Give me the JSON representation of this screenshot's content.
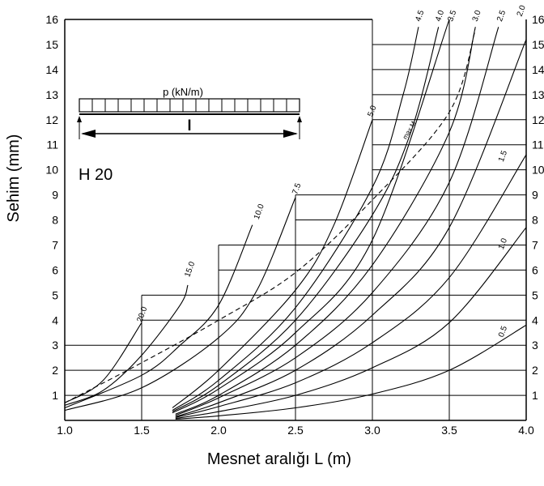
{
  "chart_data": {
    "type": "line",
    "title": "",
    "xlabel": "Mesnet aralığı L (m)",
    "ylabel": "Sehim (mm)",
    "xlim": [
      1.0,
      4.0
    ],
    "ylim": [
      0,
      16
    ],
    "x_ticks": [
      "1.0",
      "1.5",
      "2.0",
      "2.5",
      "3.0",
      "3.5",
      "4.0"
    ],
    "y_ticks": [
      "1",
      "2",
      "3",
      "4",
      "5",
      "6",
      "7",
      "8",
      "9",
      "10",
      "11",
      "12",
      "13",
      "14",
      "15",
      "16"
    ],
    "right_y_ticks": [
      "1",
      "2",
      "3",
      "4",
      "5",
      "6",
      "7",
      "8",
      "9",
      "10",
      "11",
      "12",
      "13",
      "14",
      "15",
      "16"
    ],
    "grid": "partial",
    "profile": "H 20",
    "load_label": "p (kN/m)",
    "span_symbol": "l",
    "max_m_label": "max M",
    "series": [
      {
        "name": "20.0",
        "points": [
          [
            1.0,
            0.7
          ],
          [
            1.25,
            1.6
          ],
          [
            1.5,
            3.9
          ]
        ],
        "label_at": [
          1.5,
          3.9
        ]
      },
      {
        "name": "15.0",
        "points": [
          [
            1.0,
            0.6
          ],
          [
            1.25,
            1.2
          ],
          [
            1.5,
            2.6
          ],
          [
            1.75,
            4.6
          ],
          [
            1.8,
            5.4
          ]
        ],
        "label_at": [
          1.81,
          5.7
        ]
      },
      {
        "name": "10.0",
        "points": [
          [
            1.0,
            0.5
          ],
          [
            1.5,
            1.8
          ],
          [
            1.75,
            3.0
          ],
          [
            2.0,
            4.6
          ],
          [
            2.22,
            7.8
          ]
        ],
        "label_at": [
          2.26,
          8.0
        ]
      },
      {
        "name": "7.5",
        "points": [
          [
            1.0,
            0.4
          ],
          [
            1.5,
            1.3
          ],
          [
            2.0,
            3.3
          ],
          [
            2.25,
            5.2
          ],
          [
            2.5,
            8.9
          ]
        ],
        "label_at": [
          2.51,
          9.0
        ]
      },
      {
        "name": "5.0",
        "points": [
          [
            1.7,
            0.5
          ],
          [
            2.0,
            2.0
          ],
          [
            2.5,
            5.2
          ],
          [
            2.75,
            7.8
          ],
          [
            3.0,
            12.0
          ]
        ],
        "label_at": [
          3.0,
          12.1
        ]
      },
      {
        "name": "4.5",
        "points": [
          [
            1.7,
            0.4
          ],
          [
            2.0,
            1.6
          ],
          [
            2.5,
            4.5
          ],
          [
            3.0,
            9.3
          ],
          [
            3.2,
            13.0
          ],
          [
            3.3,
            15.7
          ]
        ],
        "label_at": [
          3.31,
          15.9
        ]
      },
      {
        "name": "4.0",
        "points": [
          [
            1.7,
            0.35
          ],
          [
            2.0,
            1.4
          ],
          [
            2.5,
            4.0
          ],
          [
            3.0,
            8.2
          ],
          [
            3.25,
            11.5
          ],
          [
            3.43,
            15.7
          ]
        ],
        "label_at": [
          3.44,
          15.9
        ]
      },
      {
        "name": "3.5",
        "points": [
          [
            1.7,
            0.3
          ],
          [
            2.0,
            1.25
          ],
          [
            2.5,
            3.5
          ],
          [
            3.0,
            7.2
          ],
          [
            3.5,
            16.0
          ]
        ],
        "label_at": [
          3.52,
          15.9
        ]
      },
      {
        "name": "3.0",
        "points": [
          [
            1.72,
            0.25
          ],
          [
            2.0,
            1.0
          ],
          [
            2.5,
            3.0
          ],
          [
            3.0,
            6.2
          ],
          [
            3.5,
            11.5
          ],
          [
            3.67,
            15.7
          ]
        ],
        "label_at": [
          3.68,
          15.9
        ]
      },
      {
        "name": "2.5",
        "points": [
          [
            1.72,
            0.2
          ],
          [
            2.0,
            0.9
          ],
          [
            2.5,
            2.5
          ],
          [
            3.0,
            5.1
          ],
          [
            3.5,
            9.5
          ],
          [
            3.82,
            15.7
          ]
        ],
        "label_at": [
          3.84,
          15.9
        ]
      },
      {
        "name": "2.0",
        "points": [
          [
            1.72,
            0.15
          ],
          [
            2.0,
            0.7
          ],
          [
            2.5,
            2.0
          ],
          [
            3.0,
            4.2
          ],
          [
            3.5,
            7.7
          ],
          [
            4.0,
            15.2
          ]
        ],
        "label_at": [
          3.97,
          16.1
        ]
      },
      {
        "name": "1.5",
        "points": [
          [
            1.72,
            0.12
          ],
          [
            2.0,
            0.55
          ],
          [
            2.5,
            1.5
          ],
          [
            3.0,
            3.1
          ],
          [
            3.5,
            5.7
          ],
          [
            4.0,
            10.6
          ]
        ],
        "label_at": [
          3.85,
          10.3
        ]
      },
      {
        "name": "1.0",
        "points": [
          [
            1.72,
            0.08
          ],
          [
            2.0,
            0.35
          ],
          [
            2.5,
            1.0
          ],
          [
            3.0,
            2.1
          ],
          [
            3.5,
            3.9
          ],
          [
            4.0,
            7.7
          ]
        ],
        "label_at": [
          3.85,
          6.8
        ]
      },
      {
        "name": "0.5",
        "points": [
          [
            1.72,
            0.05
          ],
          [
            2.0,
            0.18
          ],
          [
            2.5,
            0.5
          ],
          [
            3.0,
            1.05
          ],
          [
            3.5,
            2.0
          ],
          [
            4.0,
            3.8
          ]
        ],
        "label_at": [
          3.85,
          3.3
        ]
      }
    ],
    "max_m_line": [
      [
        1.0,
        0.7
      ],
      [
        1.5,
        2.3
      ],
      [
        2.0,
        4.0
      ],
      [
        2.5,
        5.9
      ],
      [
        3.0,
        8.8
      ],
      [
        3.5,
        12.3
      ],
      [
        3.67,
        15.6
      ]
    ],
    "grid_segments": {
      "horizontal": [
        {
          "x_from": 1.0,
          "x_to": 4.0,
          "y": 1
        },
        {
          "x_from": 1.0,
          "x_to": 4.0,
          "y": 2
        },
        {
          "x_from": 1.0,
          "x_to": 4.0,
          "y": 3
        },
        {
          "x_from": 1.5,
          "x_to": 4.0,
          "y": 4
        },
        {
          "x_from": 1.5,
          "x_to": 4.0,
          "y": 5
        },
        {
          "x_from": 2.0,
          "x_to": 4.0,
          "y": 6
        },
        {
          "x_from": 2.0,
          "x_to": 4.0,
          "y": 7
        },
        {
          "x_from": 2.5,
          "x_to": 4.0,
          "y": 8
        },
        {
          "x_from": 2.5,
          "x_to": 4.0,
          "y": 9
        },
        {
          "x_from": 3.0,
          "x_to": 4.0,
          "y": 10
        },
        {
          "x_from": 3.0,
          "x_to": 4.0,
          "y": 11
        },
        {
          "x_from": 3.0,
          "x_to": 4.0,
          "y": 12
        },
        {
          "x_from": 3.0,
          "x_to": 4.0,
          "y": 13
        },
        {
          "x_from": 3.0,
          "x_to": 4.0,
          "y": 14
        },
        {
          "x_from": 3.0,
          "x_to": 4.0,
          "y": 15
        }
      ],
      "vertical": [
        {
          "x": 1.5,
          "y_from": 0,
          "y_to": 5
        },
        {
          "x": 2.0,
          "y_from": 0,
          "y_to": 7
        },
        {
          "x": 2.5,
          "y_from": 0,
          "y_to": 9
        },
        {
          "x": 3.0,
          "y_from": 0,
          "y_to": 16
        },
        {
          "x": 3.5,
          "y_from": 0,
          "y_to": 16
        }
      ]
    }
  }
}
